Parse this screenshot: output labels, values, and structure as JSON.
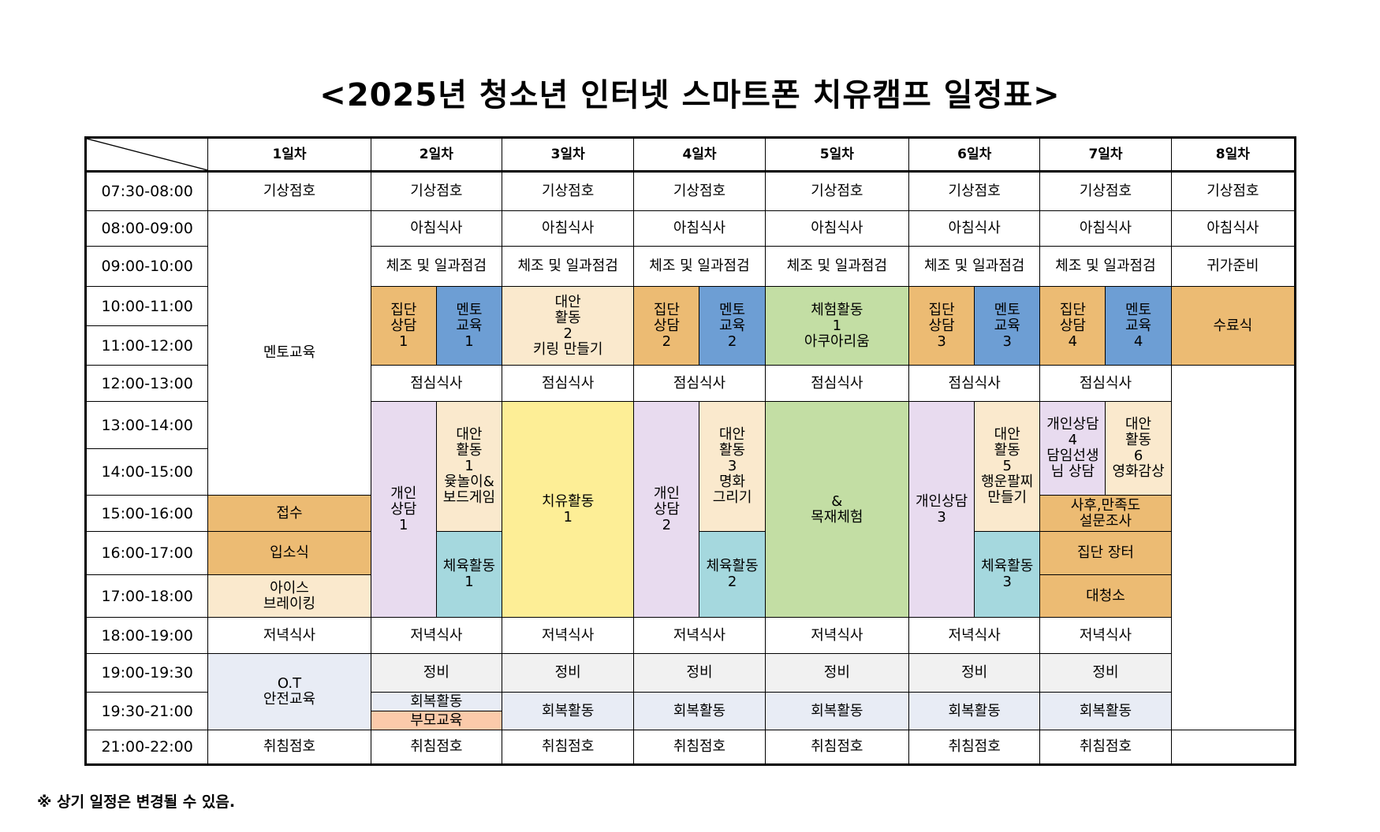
{
  "title": "<2025년 청소년 인터넷 스마트폰 치유캠프 일정표>",
  "days": [
    "1일차",
    "2일차",
    "3일차",
    "4일차",
    "5일차",
    "6일차",
    "7일차",
    "8일차"
  ],
  "times": [
    "07:30-08:00",
    "08:00-09:00",
    "09:00-10:00",
    "10:00-11:00",
    "11:00-12:00",
    "12:00-13:00",
    "13:00-14:00",
    "14:00-15:00",
    "15:00-16:00",
    "16:00-17:00",
    "17:00-18:00",
    "18:00-19:00",
    "19:00-19:30",
    "19:30-21:00",
    "21:00-22:00"
  ],
  "cells": {
    "d1_wake": "기상점호",
    "d2_wake": "기상점호",
    "d3_wake": "기상점호",
    "d4_wake": "기상점호",
    "d5_wake": "기상점호",
    "d6_wake": "기상점호",
    "d7_wake": "기상점호",
    "d8_wake": "기상점호",
    "d1_mentor": "멘토교육",
    "d2_breakfast": "아침식사",
    "d3_breakfast": "아침식사",
    "d4_breakfast": "아침식사",
    "d5_breakfast": "아침식사",
    "d6_breakfast": "아침식사",
    "d7_breakfast": "아침식사",
    "d8_breakfast": "아침식사",
    "d2_exercise": "체조 및 일과점검",
    "d3_exercise": "체조 및 일과점검",
    "d4_exercise": "체조 및 일과점검",
    "d5_exercise": "체조 및 일과점검",
    "d6_exercise": "체조 및 일과점검",
    "d7_exercise": "체조 및 일과점검",
    "d8_prep": "귀가준비",
    "d2_group": "집단\n상담\n1",
    "d2_mentoredu": "멘토\n교육\n1",
    "d3_alt2": "대안\n활동\n2\n키링 만들기",
    "d4_group": "집단\n상담\n2",
    "d4_mentoredu": "멘토\n교육\n2",
    "d5_exp": "체험활동\n1\n아쿠아리움",
    "d6_group": "집단\n상담\n3",
    "d6_mentoredu": "멘토\n교육\n3",
    "d7_group": "집단\n상담\n4",
    "d7_mentoredu": "멘토\n교육\n4",
    "d8_closing": "수료식",
    "d2_lunch": "점심식사",
    "d3_lunch": "점심식사",
    "d4_lunch": "점심식사",
    "d5_lunch": "점심식사",
    "d6_lunch": "점심식사",
    "d7_lunch": "점심식사",
    "d2_personal": "개인\n상담\n1",
    "d2_alt1": "대안\n활동\n1\n윷놀이&\n보드게임",
    "d3_heal": "치유활동\n1",
    "d4_personal": "개인\n상담\n2",
    "d4_alt3": "대안\n활동\n3\n명화\n그리기",
    "d5_wood": "&\n목재체험",
    "d6_personal": "개인상담\n3",
    "d6_alt5": "대안\n활동\n5\n행운팔찌\n만들기",
    "d7_personal": "개인상담\n4\n담임선생\n님 상담",
    "d7_alt6": "대안\n활동\n6\n영화감상",
    "d1_reception": "접수",
    "d7_survey": "사후,만족도\n설문조사",
    "d1_entrance": "입소식",
    "d2_sport": "체육활동\n1",
    "d4_sport": "체육활동\n2",
    "d6_sport": "체육활동\n3",
    "d7_market": "집단 장터",
    "d1_icebreak": "아이스\n브레이킹",
    "d7_grandclean": "대청소",
    "d1_dinner": "저녁식사",
    "d2_dinner": "저녁식사",
    "d3_dinner": "저녁식사",
    "d4_dinner": "저녁식사",
    "d5_dinner": "저녁식사",
    "d6_dinner": "저녁식사",
    "d7_dinner": "저녁식사",
    "d1_ot": "O.T\n안전교육",
    "d2_maint": "정비",
    "d3_maint": "정비",
    "d4_maint": "정비",
    "d5_maint": "정비",
    "d6_maint": "정비",
    "d7_maint": "정비",
    "d2_recovery": "회복활동",
    "d2_parent": "부모교육",
    "d3_recovery": "회복활동",
    "d4_recovery": "회복활동",
    "d5_recovery": "회복활동",
    "d6_recovery": "회복활동",
    "d7_recovery": "회복활동",
    "d1_bed": "취침점호",
    "d2_bed": "취침점호",
    "d3_bed": "취침점호",
    "d4_bed": "취침점호",
    "d5_bed": "취침점호",
    "d6_bed": "취침점호",
    "d7_bed": "취침점호"
  },
  "footnote": "※ 상기 일정은 변경될 수 있음."
}
